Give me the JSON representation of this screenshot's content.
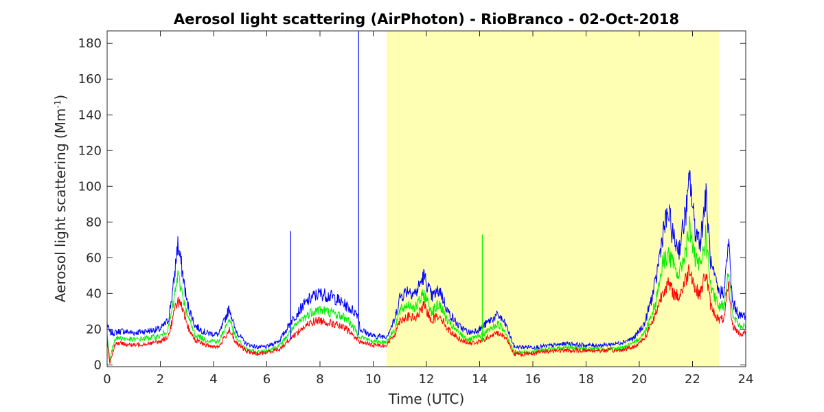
{
  "chart_data": {
    "type": "line",
    "title": "Aerosol light scattering (AirPhoton) - RioBranco - 02-Oct-2018",
    "xlabel": "Time (UTC)",
    "ylabel_main": "Aerosol light scattering (Mm",
    "ylabel_sup": "-1",
    "ylabel_end": ")",
    "xlim": [
      0,
      24
    ],
    "ylim": [
      -1,
      187
    ],
    "x_ticks": [
      0,
      2,
      4,
      6,
      8,
      10,
      12,
      14,
      16,
      18,
      20,
      22,
      24
    ],
    "y_ticks": [
      0,
      20,
      40,
      60,
      80,
      100,
      120,
      140,
      160,
      180
    ],
    "grid": false,
    "highlight_band": {
      "x_start": 10.5,
      "x_end": 23.0,
      "color": "#ffffb3"
    },
    "series": [
      {
        "color": "#0000ff",
        "x": [
          0,
          0.1,
          0.3,
          0.5,
          1.0,
          1.5,
          2.0,
          2.3,
          2.5,
          2.65,
          2.8,
          3.0,
          3.3,
          3.7,
          4.2,
          4.6,
          4.8,
          5.2,
          5.6,
          6.0,
          6.5,
          6.9,
          7.3,
          7.7,
          8.0,
          8.5,
          9.0,
          9.45,
          9.5,
          10.0,
          10.5,
          10.8,
          11.0,
          11.3,
          11.6,
          11.9,
          12.2,
          12.5,
          12.8,
          13.2,
          13.6,
          14.0,
          14.4,
          14.7,
          15.0,
          15.3,
          15.7,
          16.2,
          16.8,
          17.3,
          18.0,
          18.6,
          19.2,
          19.8,
          20.2,
          20.6,
          20.9,
          21.1,
          21.3,
          21.5,
          21.8,
          21.9,
          22.1,
          22.3,
          22.5,
          22.7,
          23.0,
          23.2,
          23.35,
          23.5,
          23.8,
          24
        ],
        "y": [
          23,
          18,
          18,
          19,
          18,
          19,
          20,
          25,
          45,
          68,
          55,
          35,
          22,
          18,
          17,
          32,
          20,
          12,
          10,
          10,
          14,
          24,
          32,
          38,
          40,
          38,
          33,
          28,
          20,
          16,
          16,
          25,
          38,
          42,
          40,
          50,
          38,
          42,
          30,
          22,
          18,
          20,
          25,
          28,
          22,
          10,
          10,
          10,
          11,
          12,
          11,
          11,
          12,
          15,
          23,
          45,
          75,
          85,
          70,
          65,
          90,
          105,
          75,
          70,
          95,
          55,
          40,
          42,
          70,
          35,
          27,
          28
        ]
      },
      {
        "color": "#00ee00",
        "x": [
          0,
          0.1,
          0.3,
          0.5,
          1.0,
          1.5,
          2.0,
          2.3,
          2.5,
          2.65,
          2.8,
          3.0,
          3.3,
          3.7,
          4.2,
          4.6,
          4.8,
          5.2,
          5.6,
          6.0,
          6.5,
          6.9,
          7.3,
          7.7,
          8.0,
          8.5,
          9.0,
          9.5,
          10.0,
          10.5,
          10.8,
          11.0,
          11.3,
          11.6,
          11.9,
          12.2,
          12.5,
          12.8,
          13.2,
          13.6,
          14.0,
          14.4,
          14.7,
          15.0,
          15.3,
          15.7,
          16.2,
          16.8,
          17.3,
          18.0,
          18.6,
          19.2,
          19.8,
          20.2,
          20.6,
          20.9,
          21.1,
          21.3,
          21.5,
          21.8,
          21.9,
          22.1,
          22.3,
          22.5,
          22.7,
          23.0,
          23.2,
          23.35,
          23.5,
          23.8,
          24
        ],
        "y": [
          17,
          3,
          15,
          15,
          14,
          15,
          16,
          20,
          35,
          50,
          42,
          28,
          17,
          14,
          13,
          26,
          16,
          9,
          7,
          8,
          11,
          19,
          25,
          30,
          31,
          29,
          26,
          16,
          13,
          13,
          20,
          30,
          34,
          32,
          40,
          30,
          34,
          24,
          18,
          14,
          16,
          20,
          23,
          18,
          7,
          7,
          8,
          9,
          10,
          9,
          9,
          9,
          12,
          18,
          34,
          58,
          62,
          55,
          50,
          68,
          78,
          58,
          55,
          72,
          42,
          32,
          34,
          55,
          28,
          21,
          22
        ]
      },
      {
        "color": "#ff0000",
        "x": [
          0,
          0.1,
          0.3,
          0.5,
          1.0,
          1.5,
          2.0,
          2.3,
          2.5,
          2.65,
          2.8,
          3.0,
          3.3,
          3.7,
          4.2,
          4.6,
          4.8,
          5.2,
          5.6,
          6.0,
          6.5,
          6.9,
          7.3,
          7.7,
          8.0,
          8.5,
          9.0,
          9.5,
          10.0,
          10.5,
          10.8,
          11.0,
          11.3,
          11.6,
          11.9,
          12.2,
          12.5,
          12.8,
          13.2,
          13.6,
          14.0,
          14.4,
          14.7,
          15.0,
          15.3,
          15.7,
          16.2,
          16.8,
          17.3,
          18.0,
          18.6,
          19.2,
          19.8,
          20.2,
          20.6,
          20.9,
          21.1,
          21.3,
          21.5,
          21.8,
          21.9,
          22.1,
          22.3,
          22.5,
          22.7,
          23.0,
          23.2,
          23.35,
          23.5,
          23.8,
          24
        ],
        "y": [
          14,
          1,
          12,
          12,
          11,
          12,
          13,
          16,
          28,
          37,
          32,
          22,
          14,
          11,
          10,
          20,
          13,
          8,
          6,
          7,
          9,
          15,
          20,
          24,
          25,
          23,
          20,
          13,
          11,
          11,
          17,
          25,
          27,
          26,
          33,
          25,
          28,
          20,
          15,
          12,
          13,
          16,
          18,
          15,
          6,
          6,
          7,
          8,
          8,
          8,
          8,
          8,
          10,
          15,
          28,
          42,
          45,
          40,
          38,
          50,
          55,
          42,
          40,
          52,
          32,
          25,
          26,
          45,
          22,
          17,
          18
        ]
      }
    ],
    "spikes": [
      {
        "x": 6.9,
        "y": 75,
        "color": "#0000ff"
      },
      {
        "x": 9.45,
        "y": 187,
        "color": "#0000ff"
      },
      {
        "x": 14.1,
        "y": 73,
        "color": "#00ee00"
      }
    ]
  }
}
